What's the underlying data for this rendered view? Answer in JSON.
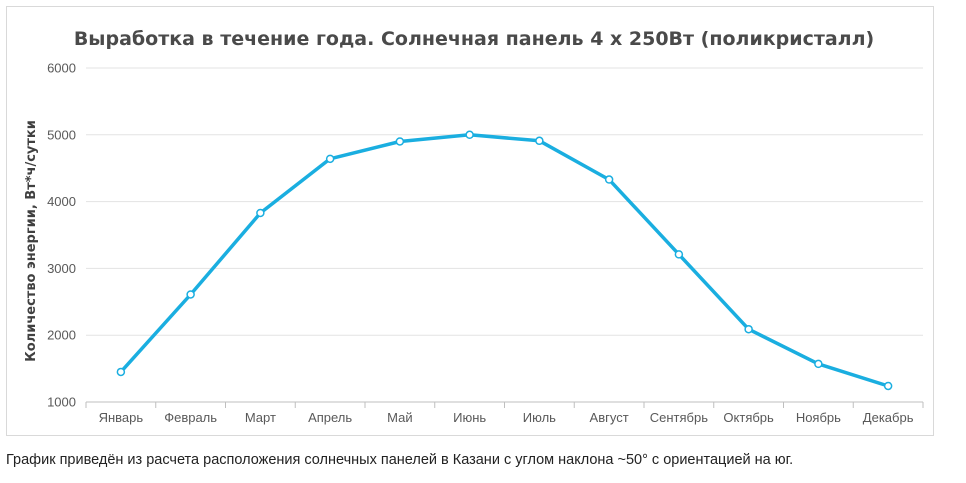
{
  "chart_data": {
    "type": "line",
    "title": "Выработка в течение года. Солнечная панель 4 х 250Вт (поликристалл)",
    "xlabel": "",
    "ylabel": "Количество энергии, Вт*ч/сутки",
    "categories": [
      "Январь",
      "Февраль",
      "Март",
      "Апрель",
      "Май",
      "Июнь",
      "Июль",
      "Август",
      "Сентябрь",
      "Октябрь",
      "Ноябрь",
      "Декабрь"
    ],
    "series": [
      {
        "values": [
          1450,
          2610,
          3830,
          4640,
          4900,
          5000,
          4910,
          4330,
          3210,
          2090,
          1570,
          1240
        ]
      }
    ],
    "ylim": [
      1000,
      6000
    ],
    "yticks": [
      "1000",
      "2000",
      "3000",
      "4000",
      "5000",
      "6000"
    ],
    "grid": true,
    "legend": "none",
    "colors": {
      "line": "#1aaee0",
      "marker_fill": "#ffffff",
      "grid": "#e3e3e3",
      "axis": "#bfbfbf"
    }
  },
  "caption": "График приведён из расчета расположения солнечных панелей в Казани с углом наклона ~50° с ориентацией на юг."
}
